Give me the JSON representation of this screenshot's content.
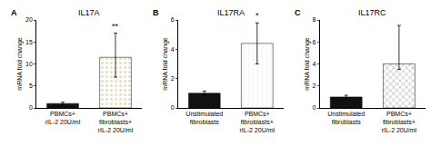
{
  "chart_data": [
    {
      "type": "bar",
      "title": "IL17A",
      "panel_label": "A",
      "categories": [
        "PBMCs+\nrIL-2 20U/ml",
        "PBMCs+\nfibroblasts+\nrIL-2 20U/ml"
      ],
      "values": [
        1.0,
        11.5
      ],
      "errors_upper": [
        0.3,
        5.5
      ],
      "errors_lower": [
        0.3,
        4.5
      ],
      "colors": [
        "#111111",
        "#e8dfc0"
      ],
      "ylabel": "mRNA fold change",
      "ylim": [
        0,
        20
      ],
      "yticks": [
        0,
        5,
        10,
        15,
        20
      ],
      "grid": false,
      "annotations": [
        {
          "text": "**",
          "x": 1,
          "y": 17.2
        }
      ]
    },
    {
      "type": "bar",
      "title": "IL17RA",
      "panel_label": "B",
      "categories": [
        "Unstimulated\nfibroblasts",
        "PBMCs+\nfibroblasts+\nrIL-2 20U/ml"
      ],
      "values": [
        1.0,
        4.4
      ],
      "errors_upper": [
        0.15,
        1.4
      ],
      "errors_lower": [
        0.15,
        1.4
      ],
      "colors": [
        "#111111",
        "#f5f5f5"
      ],
      "ylabel": "mRNA fold change",
      "ylim": [
        0,
        6
      ],
      "yticks": [
        0,
        2,
        4,
        6
      ],
      "grid": false,
      "annotations": [
        {
          "text": "*",
          "x": 1,
          "y": 5.85
        }
      ]
    },
    {
      "type": "bar",
      "title": "IL17RC",
      "panel_label": "C",
      "categories": [
        "Unstimulated\nfibroblasts",
        "PBMCs+\nfibroblasts+\nrIL-2 20U/ml"
      ],
      "values": [
        1.0,
        4.0
      ],
      "errors_upper": [
        0.15,
        3.5
      ],
      "errors_lower": [
        0.15,
        0.5
      ],
      "colors": [
        "#111111",
        "#c0c0c0"
      ],
      "ylabel": "mRNA fold change",
      "ylim": [
        0,
        8
      ],
      "yticks": [
        0,
        2,
        4,
        6,
        8
      ],
      "grid": false
    }
  ]
}
